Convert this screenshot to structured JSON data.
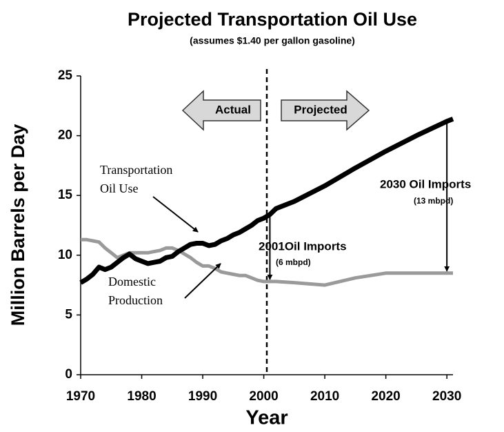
{
  "chart_data": {
    "type": "line",
    "title": "Projected Transportation Oil Use",
    "subtitle": "(assumes $1.40 per gallon gasoline)",
    "y_label": "Million Barrels per Day",
    "x_label": "Year",
    "x": [
      1970,
      1971,
      1972,
      1973,
      1974,
      1975,
      1976,
      1977,
      1978,
      1979,
      1980,
      1981,
      1982,
      1983,
      1984,
      1985,
      1986,
      1987,
      1988,
      1989,
      1990,
      1991,
      1992,
      1993,
      1994,
      1995,
      1996,
      1997,
      1998,
      1999,
      2000,
      2001,
      2002,
      2005,
      2010,
      2015,
      2020,
      2025,
      2030,
      2031
    ],
    "series": [
      {
        "name": "Transportation Oil Use",
        "color": "#000000",
        "values": [
          7.7,
          8.0,
          8.4,
          9.0,
          8.8,
          9.0,
          9.4,
          9.8,
          10.1,
          9.7,
          9.5,
          9.3,
          9.4,
          9.5,
          9.8,
          9.9,
          10.3,
          10.6,
          10.9,
          11.0,
          11.0,
          10.8,
          10.9,
          11.2,
          11.4,
          11.7,
          11.9,
          12.2,
          12.5,
          12.9,
          13.1,
          13.4,
          13.9,
          14.5,
          15.8,
          17.3,
          18.7,
          20.0,
          21.2,
          21.4
        ]
      },
      {
        "name": "Domestic Production",
        "color": "#9a9a9a",
        "values": [
          11.3,
          11.3,
          11.2,
          11.1,
          10.6,
          10.2,
          9.8,
          10.0,
          10.2,
          10.2,
          10.2,
          10.2,
          10.3,
          10.4,
          10.6,
          10.6,
          10.4,
          10.1,
          9.8,
          9.4,
          9.1,
          9.1,
          8.9,
          8.6,
          8.5,
          8.4,
          8.3,
          8.3,
          8.1,
          7.9,
          7.8,
          7.8,
          7.8,
          7.7,
          7.5,
          8.1,
          8.5,
          8.5,
          8.5,
          8.5
        ]
      }
    ],
    "series_labels": [
      [
        "Transportation",
        "Oil Use"
      ],
      [
        "Domestic",
        "Production"
      ]
    ],
    "xlim": [
      1970,
      2031
    ],
    "xticks": [
      1970,
      1980,
      1990,
      2000,
      2010,
      2020,
      2030
    ],
    "ylim": [
      0,
      25
    ],
    "yticks": [
      0,
      5,
      10,
      15,
      20,
      25
    ],
    "divider_x": 2000.5,
    "period_labels": [
      "Actual",
      "Projected"
    ],
    "imports": [
      {
        "year": 2001,
        "label": "2001Oil Imports",
        "amount": "(6 mbpd)"
      },
      {
        "year": 2030,
        "label": "2030 Oil Imports",
        "amount": "(13 mbpd)"
      }
    ]
  }
}
